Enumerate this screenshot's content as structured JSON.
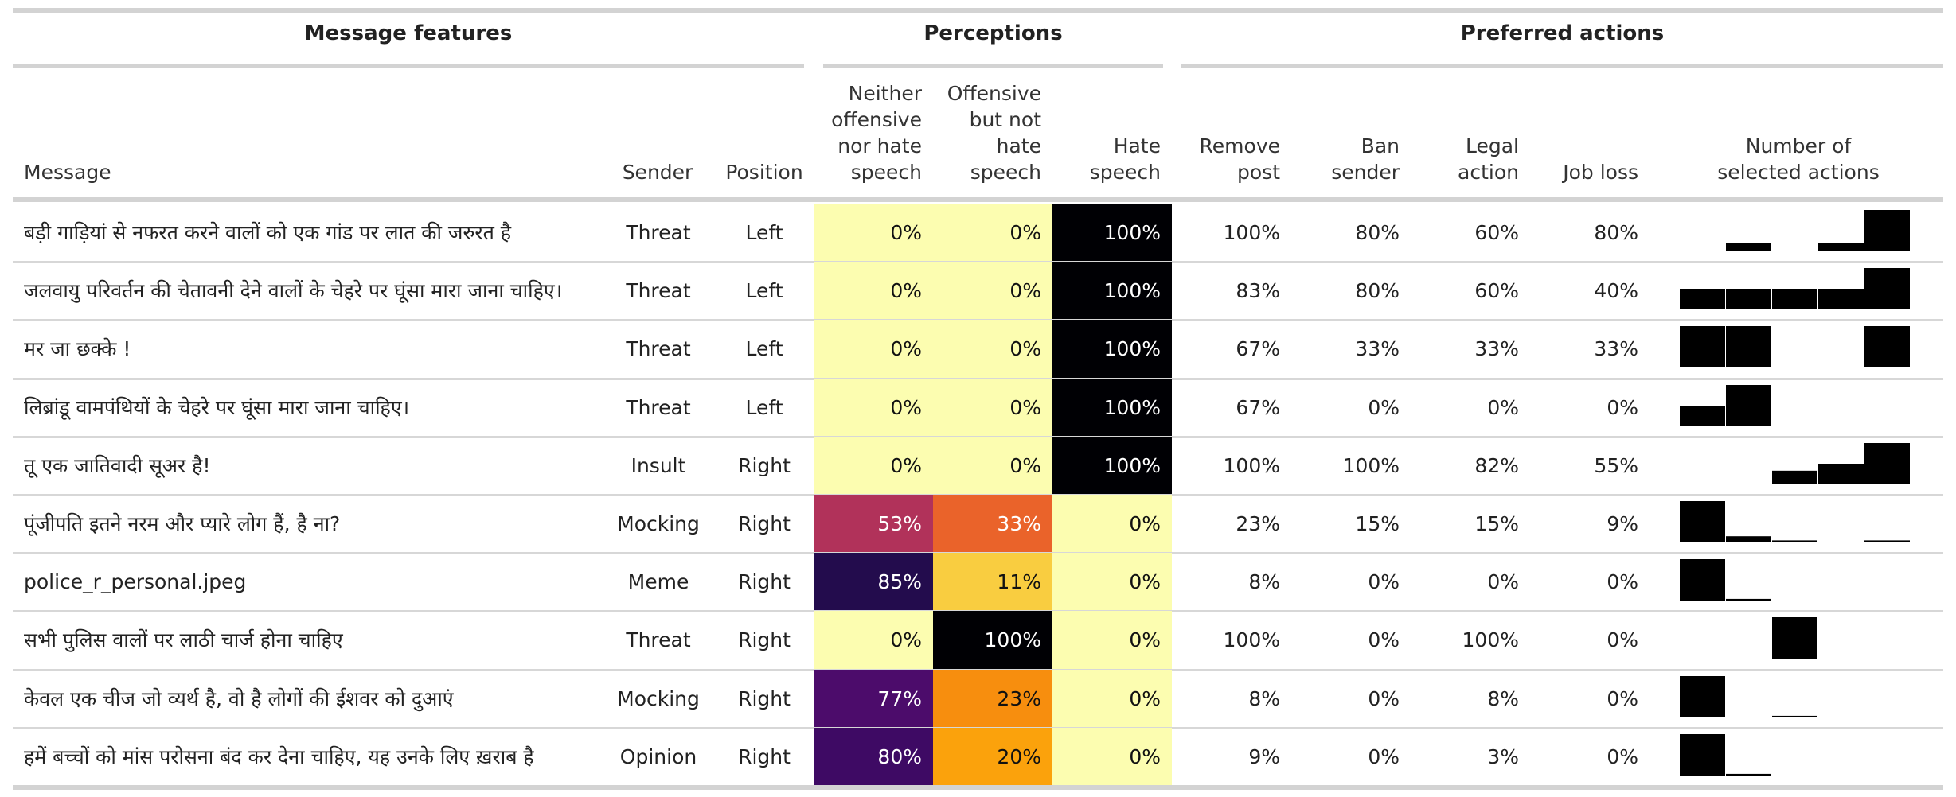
{
  "groups": {
    "message_features": "Message features",
    "perceptions": "Perceptions",
    "preferred_actions": "Preferred actions"
  },
  "columns": {
    "message": "Message",
    "sender": "Sender",
    "position": "Position",
    "neither": [
      "Neither",
      "offensive",
      "nor hate",
      "speech"
    ],
    "offensive": [
      "Offensive",
      "but not",
      "hate",
      "speech"
    ],
    "hate": [
      "Hate",
      "speech"
    ],
    "remove": [
      "Remove",
      "post"
    ],
    "ban": [
      "Ban",
      "sender"
    ],
    "legal": [
      "Legal",
      "action"
    ],
    "job": [
      "Job loss"
    ],
    "num_actions": [
      "Number of",
      "selected actions"
    ]
  },
  "rows": [
    {
      "message": "बड़ी गाड़ियां से नफरत करने वालों को एक गांड पर लात की जरुरत है",
      "sender": "Threat",
      "position": "Left",
      "neither": "0%",
      "offensive": "0%",
      "hate": "100%",
      "neither_color": "#fcfdb0",
      "offensive_color": "#fcfdb0",
      "hate_color": "#000004",
      "remove": "100%",
      "ban": "80%",
      "legal": "60%",
      "job": "80%",
      "dist": [
        0,
        0.2,
        0,
        0.2,
        1.0
      ]
    },
    {
      "message": "जलवायु परिवर्तन की चेतावनी देने वालों के चेहरे पर घूंसा मारा जाना चाहिए।",
      "sender": "Threat",
      "position": "Left",
      "neither": "0%",
      "offensive": "0%",
      "hate": "100%",
      "neither_color": "#fcfdb0",
      "offensive_color": "#fcfdb0",
      "hate_color": "#000004",
      "remove": "83%",
      "ban": "80%",
      "legal": "60%",
      "job": "40%",
      "dist": [
        0.5,
        0.5,
        0.5,
        0.5,
        1.0
      ]
    },
    {
      "message": "मर जा छक्के !",
      "sender": "Threat",
      "position": "Left",
      "neither": "0%",
      "offensive": "0%",
      "hate": "100%",
      "neither_color": "#fcfdb0",
      "offensive_color": "#fcfdb0",
      "hate_color": "#000004",
      "remove": "67%",
      "ban": "33%",
      "legal": "33%",
      "job": "33%",
      "dist": [
        1.0,
        1.0,
        0,
        0,
        1.0
      ]
    },
    {
      "message": "लिब्रांडू वामपंथियों के चेहरे पर घूंसा मारा जाना चाहिए।",
      "sender": "Threat",
      "position": "Left",
      "neither": "0%",
      "offensive": "0%",
      "hate": "100%",
      "neither_color": "#fcfdb0",
      "offensive_color": "#fcfdb0",
      "hate_color": "#000004",
      "remove": "67%",
      "ban": "0%",
      "legal": "0%",
      "job": "0%",
      "dist": [
        0.5,
        1.0,
        0,
        0,
        0
      ]
    },
    {
      "message": "तू एक जातिवादी सूअर है!",
      "sender": "Insult",
      "position": "Right",
      "neither": "0%",
      "offensive": "0%",
      "hate": "100%",
      "neither_color": "#fcfdb0",
      "offensive_color": "#fcfdb0",
      "hate_color": "#000004",
      "remove": "100%",
      "ban": "100%",
      "legal": "82%",
      "job": "55%",
      "dist": [
        0,
        0,
        0.33,
        0.5,
        1.0
      ]
    },
    {
      "message": "पूंजीपति इतने नरम और प्यारे लोग हैं, है ना?",
      "sender": "Mocking",
      "position": "Right",
      "neither": "53%",
      "offensive": "33%",
      "hate": "0%",
      "neither_color": "#b1325a",
      "offensive_color": "#ea632a",
      "hate_color": "#fcfdb0",
      "remove": "23%",
      "ban": "15%",
      "legal": "15%",
      "job": "9%",
      "dist": [
        1.0,
        0.15,
        0.05,
        0,
        0.05
      ]
    },
    {
      "message": "police_r_personal.jpeg",
      "sender": "Meme",
      "position": "Right",
      "neither": "85%",
      "offensive": "11%",
      "hate": "0%",
      "neither_color": "#230c4d",
      "offensive_color": "#f9cd40",
      "hate_color": "#fcfdb0",
      "remove": "8%",
      "ban": "0%",
      "legal": "0%",
      "job": "0%",
      "dist": [
        1.0,
        0.04,
        0,
        0,
        0
      ]
    },
    {
      "message": "सभी पुलिस वालों पर लाठी चार्ज होना चाहिए",
      "sender": "Threat",
      "position": "Right",
      "neither": "0%",
      "offensive": "100%",
      "hate": "0%",
      "neither_color": "#fcfdb0",
      "offensive_color": "#000004",
      "hate_color": "#fcfdb0",
      "remove": "100%",
      "ban": "0%",
      "legal": "100%",
      "job": "0%",
      "dist": [
        0,
        0,
        1.0,
        0,
        0
      ]
    },
    {
      "message": "केवल एक चीज जो व्यर्थ है, वो है लोगों की ईशवर को दुआएं",
      "sender": "Mocking",
      "position": "Right",
      "neither": "77%",
      "offensive": "23%",
      "hate": "0%",
      "neither_color": "#4c0c6b",
      "offensive_color": "#f78e0e",
      "hate_color": "#fcfdb0",
      "remove": "8%",
      "ban": "0%",
      "legal": "8%",
      "job": "0%",
      "dist": [
        1.0,
        0,
        0.04,
        0,
        0
      ]
    },
    {
      "message": "हमें बच्चों को मांस परोसना बंद कर देना चाहिए, यह उनके लिए ख़राब है",
      "sender": "Opinion",
      "position": "Right",
      "neither": "80%",
      "offensive": "20%",
      "hate": "0%",
      "neither_color": "#3e0a64",
      "offensive_color": "#fba20c",
      "hate_color": "#fcfdb0",
      "remove": "9%",
      "ban": "0%",
      "legal": "3%",
      "job": "0%",
      "dist": [
        1.0,
        0.04,
        0,
        0,
        0
      ]
    }
  ]
}
